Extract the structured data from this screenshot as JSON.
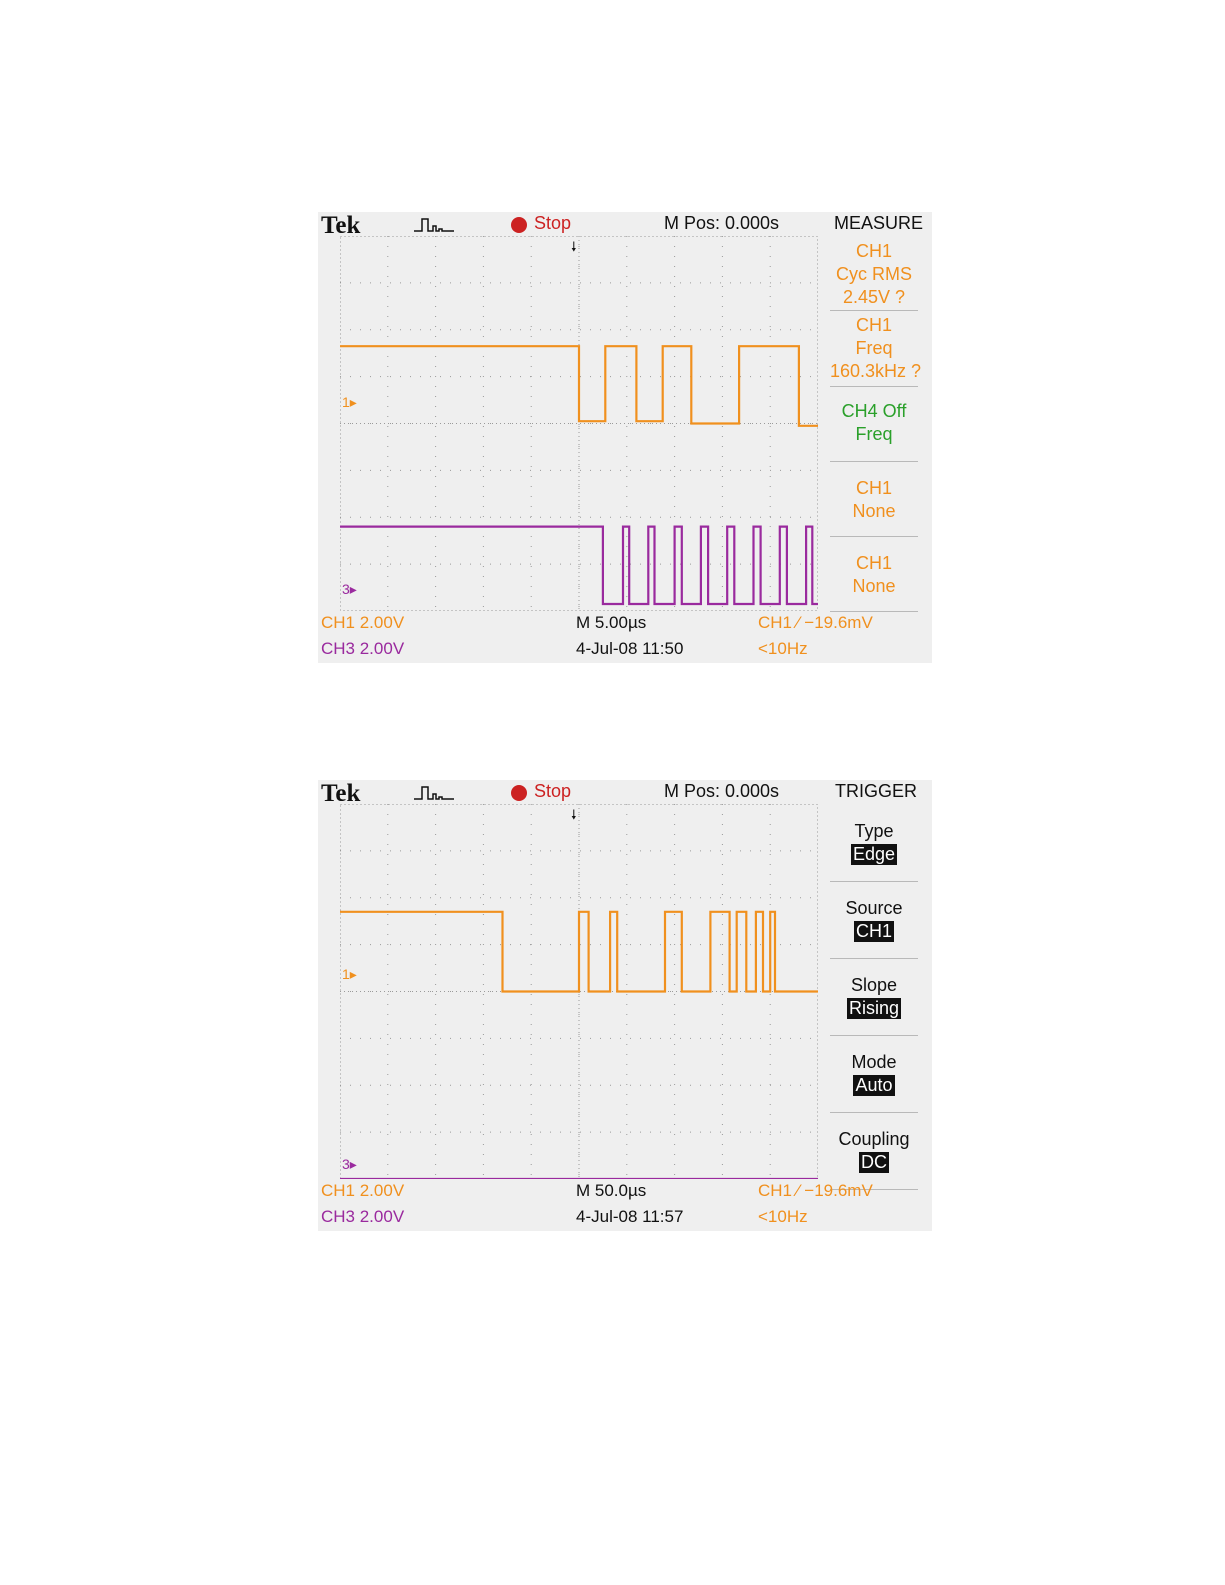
{
  "colors": {
    "ch1": "#f0901e",
    "ch3": "#9a2a9e",
    "ch4": "#2aa02a",
    "stop": "#cc2222",
    "grid": "#9a9a9a"
  },
  "icons": {
    "acquisition": "acquisition-pulse-icon",
    "stop": "stop-dot-icon",
    "trigger_position": "trigger-position-arrow-icon"
  },
  "scopes": [
    {
      "brand": "Tek",
      "run_status": "Stop",
      "m_pos": "M Pos: 0.000s",
      "menu_title": "MEASURE",
      "trigger_marker": "🠗",
      "ch1_marker": "1▸",
      "ch3_marker": "3▸",
      "menu_items": [
        {
          "lines": [
            "CH1",
            "Cyc RMS",
            "2.45V ?"
          ],
          "color": "orange"
        },
        {
          "lines": [
            "CH1",
            "Freq",
            "160.3kHz ?"
          ],
          "color": "orange"
        },
        {
          "lines": [
            "CH4 Off",
            "Freq"
          ],
          "color": "green"
        },
        {
          "lines": [
            "CH1",
            "None"
          ],
          "color": "orange"
        },
        {
          "lines": [
            "CH1",
            "None"
          ],
          "color": "orange"
        }
      ],
      "footer": {
        "ch1": "CH1  2.00V",
        "ch3": "CH3  2.00V",
        "timebase": "M 5.00µs",
        "date": "4-Jul-08 11:50",
        "trigger": "CH1 ⁄ −19.6mV",
        "trig_freq": "<10Hz"
      }
    },
    {
      "brand": "Tek",
      "run_status": "Stop",
      "m_pos": "M Pos: 0.000s",
      "menu_title": "TRIGGER",
      "trigger_marker": "🠗",
      "ch1_marker": "1▸",
      "ch3_marker": "3▸",
      "menu_items": [
        {
          "label": "Type",
          "value": "Edge"
        },
        {
          "label": "Source",
          "value": "CH1"
        },
        {
          "label": "Slope",
          "value": "Rising"
        },
        {
          "label": "Mode",
          "value": "Auto"
        },
        {
          "label": "Coupling",
          "value": "DC"
        }
      ],
      "footer": {
        "ch1": "CH1  2.00V",
        "ch3": "CH3  2.00V",
        "timebase": "M 50.0µs",
        "date": "4-Jul-08 11:57",
        "trigger": "CH1 ⁄ −19.6mV",
        "trig_freq": "<10Hz"
      }
    }
  ],
  "chart_data": [
    {
      "type": "line",
      "x_unit": "divisions",
      "y_unit": "divisions",
      "xlim": [
        -5,
        5
      ],
      "ylim": [
        -4,
        4
      ],
      "grid": true,
      "series": [
        {
          "channel": "CH1",
          "color": "#f0901e",
          "x": [
            -5,
            0,
            0,
            0.55,
            0.55,
            1.2,
            1.2,
            1.75,
            1.75,
            2.35,
            2.35,
            3.35,
            3.35,
            4.6,
            4.6,
            5
          ],
          "y": [
            1.65,
            1.65,
            0.05,
            0.05,
            1.65,
            1.65,
            0.05,
            0.05,
            1.65,
            1.65,
            0,
            0,
            1.65,
            1.65,
            -0.05,
            -0.05
          ]
        },
        {
          "channel": "CH3",
          "color": "#9a2a9e",
          "x": [
            -5,
            0.5,
            0.5,
            0.92,
            0.92,
            1.05,
            1.05,
            1.45,
            1.45,
            1.58,
            1.58,
            2.0,
            2.0,
            2.15,
            2.15,
            2.55,
            2.55,
            2.7,
            2.7,
            3.1,
            3.1,
            3.25,
            3.25,
            3.65,
            3.65,
            3.8,
            3.8,
            4.2,
            4.2,
            4.35,
            4.35,
            4.75,
            4.75,
            4.88,
            4.88,
            5
          ],
          "y": [
            -2.2,
            -2.2,
            -3.85,
            -3.85,
            -2.2,
            -2.2,
            -3.85,
            -3.85,
            -2.2,
            -2.2,
            -3.85,
            -3.85,
            -2.2,
            -2.2,
            -3.85,
            -3.85,
            -2.2,
            -2.2,
            -3.85,
            -3.85,
            -2.2,
            -2.2,
            -3.85,
            -3.85,
            -2.2,
            -2.2,
            -3.85,
            -3.85,
            -2.2,
            -2.2,
            -3.85,
            -3.85,
            -2.2,
            -2.2,
            -3.85,
            -3.85
          ]
        }
      ]
    },
    {
      "type": "line",
      "x_unit": "divisions",
      "y_unit": "divisions",
      "xlim": [
        -5,
        5
      ],
      "ylim": [
        -4,
        4
      ],
      "grid": true,
      "series": [
        {
          "channel": "CH1",
          "color": "#f0901e",
          "x": [
            -5,
            -1.6,
            -1.6,
            0,
            0,
            0.2,
            0.2,
            0.65,
            0.65,
            0.8,
            0.8,
            1.8,
            1.8,
            2.15,
            2.15,
            2.75,
            2.75,
            3.15,
            3.15,
            3.3,
            3.3,
            3.5,
            3.5,
            3.7,
            3.7,
            3.85,
            3.85,
            4.0,
            4.0,
            4.1,
            4.1,
            4.25,
            4.25,
            5
          ],
          "y": [
            1.7,
            1.7,
            0,
            0,
            1.7,
            1.7,
            0,
            0,
            1.7,
            1.7,
            0,
            0,
            1.7,
            1.7,
            0,
            0,
            1.7,
            1.7,
            0,
            0,
            1.7,
            1.7,
            0,
            0,
            1.7,
            1.7,
            0,
            0,
            1.7,
            1.7,
            0,
            0,
            0,
            0
          ]
        },
        {
          "channel": "CH3",
          "color": "#9a2a9e",
          "x": [
            -5,
            5
          ],
          "y": [
            -4,
            -4
          ]
        }
      ]
    }
  ]
}
